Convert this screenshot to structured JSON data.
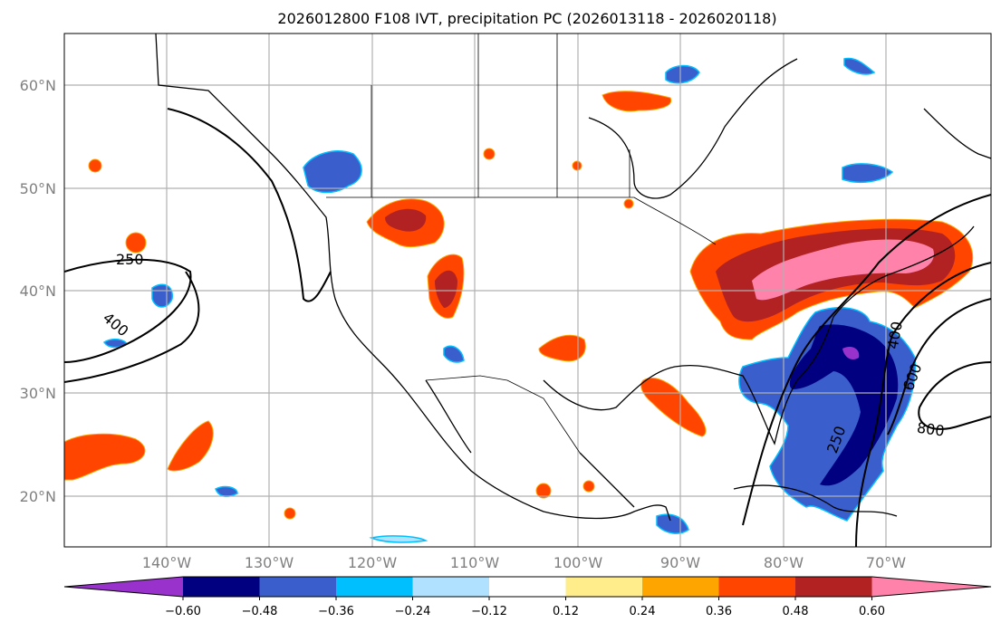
{
  "title": "2026012800 F108 IVT, precipitation PC (2026013118 - 2026020118)",
  "axes": {
    "lat_labels": [
      "60°N",
      "50°N",
      "40°N",
      "30°N",
      "20°N"
    ],
    "lon_labels": [
      "140°W",
      "130°W",
      "120°W",
      "110°W",
      "100°W",
      "90°W",
      "80°W",
      "70°W"
    ]
  },
  "contour_labels": [
    "250",
    "400",
    "400",
    "600",
    "800",
    "250"
  ],
  "colorbar": {
    "ticks": [
      "−0.60",
      "−0.48",
      "−0.36",
      "−0.24",
      "−0.12",
      "0.12",
      "0.24",
      "0.36",
      "0.48",
      "0.60"
    ],
    "colors": [
      "#9932CC",
      "#000080",
      "#3A5FCD",
      "#00BFFF",
      "#B0E2FF",
      "#FFFFFF",
      "#FFEC8B",
      "#FFA500",
      "#FF4500",
      "#B22222",
      "#FF82AB"
    ]
  },
  "chart_data": {
    "type": "heatmap",
    "title": "2026012800 F108 IVT, precipitation PC (2026013118 - 2026020118)",
    "xlim": [
      -150,
      -60
    ],
    "ylim": [
      15,
      65
    ],
    "levels": [
      -0.6,
      -0.48,
      -0.36,
      -0.24,
      -0.12,
      0.12,
      0.24,
      0.36,
      0.48,
      0.6
    ],
    "ivt_contours": [
      250,
      400,
      600,
      800
    ],
    "grid": true,
    "colorbar_placement": "bottom"
  }
}
